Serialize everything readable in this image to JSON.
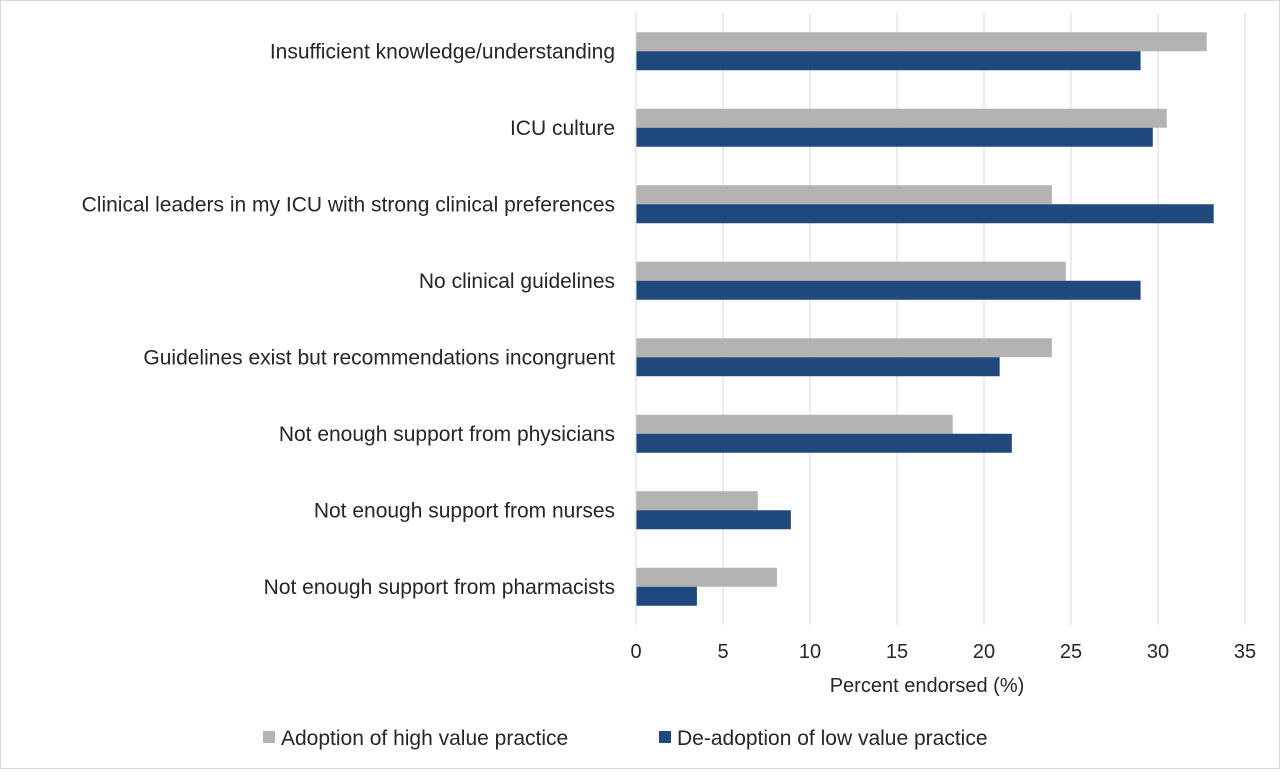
{
  "chart_data": {
    "type": "bar",
    "orientation": "horizontal",
    "categories": [
      "Insufficient knowledge/understanding",
      "ICU culture",
      "Clinical leaders in my ICU with strong clinical preferences",
      "No clinical guidelines",
      "Guidelines exist but recommendations incongruent",
      "Not enough support from physicians",
      "Not enough support from nurses",
      "Not enough support from pharmacists"
    ],
    "series": [
      {
        "name": "Adoption of high value practice",
        "color": "#b3b3b3",
        "values": [
          32.8,
          30.5,
          23.9,
          24.7,
          23.9,
          18.2,
          7.0,
          8.1
        ]
      },
      {
        "name": "De-adoption of low value practice",
        "color": "#1f497d",
        "values": [
          29.0,
          29.7,
          33.2,
          29.0,
          20.9,
          21.6,
          8.9,
          3.5
        ]
      }
    ],
    "xlabel": "Percent endorsed (%)",
    "ylabel": "",
    "xlim": [
      0,
      35
    ],
    "xticks": [
      0,
      5,
      10,
      15,
      20,
      25,
      30,
      35
    ],
    "grid": true,
    "legend_position": "bottom"
  }
}
